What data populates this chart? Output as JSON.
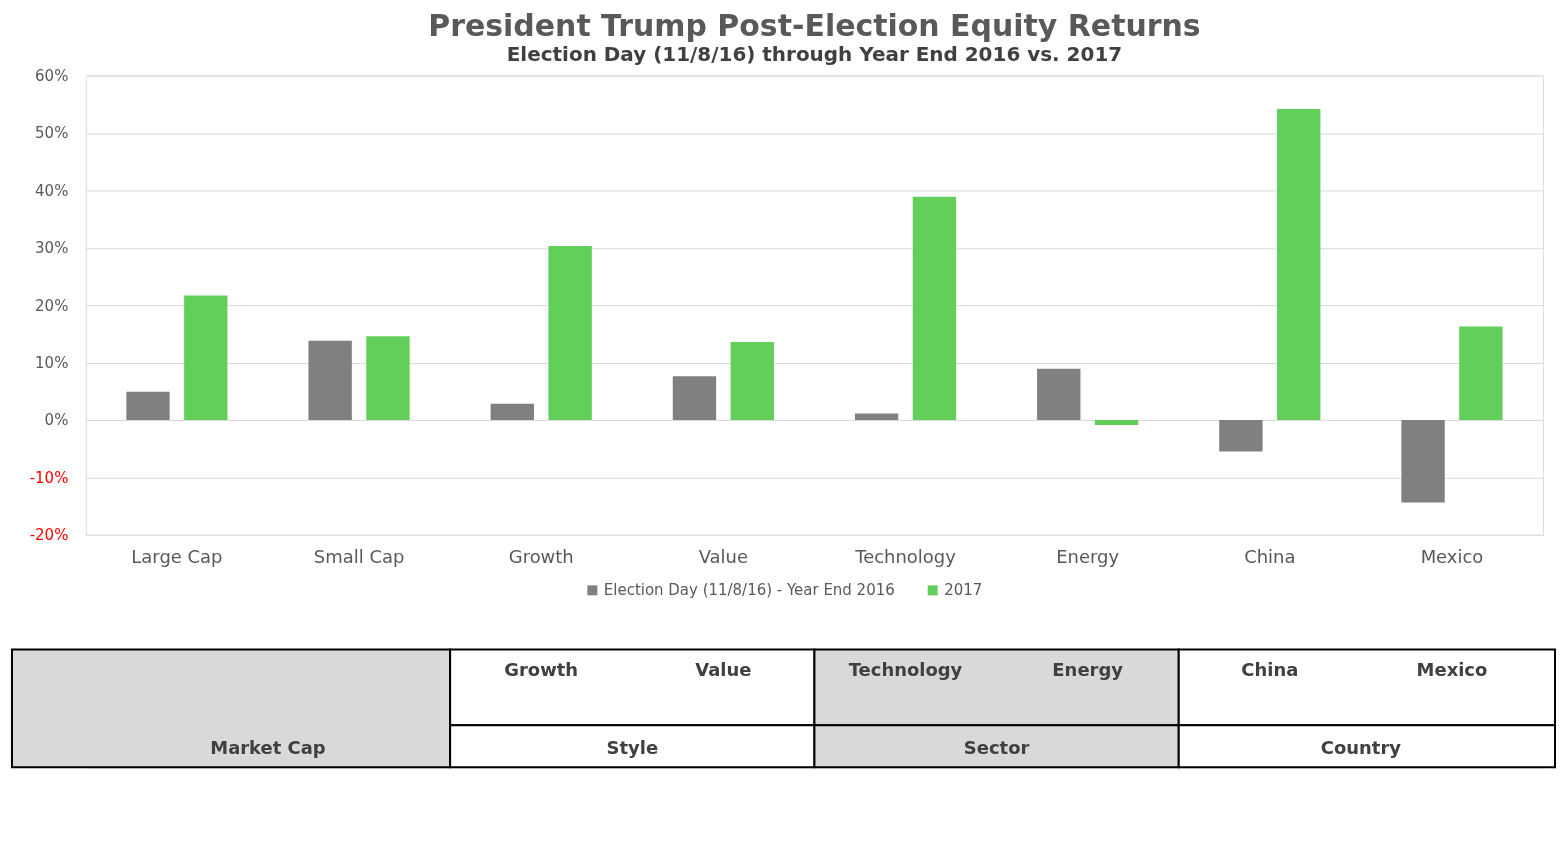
{
  "chart_data": {
    "type": "bar",
    "title": "President Trump Post-Election Equity Returns",
    "subtitle": "Election Day (11/8/16) through Year End 2016 vs. 2017",
    "categories": [
      "Large Cap",
      "Small Cap",
      "Growth",
      "Value",
      "Technology",
      "Energy",
      "China",
      "Mexico"
    ],
    "series": [
      {
        "name": "Election Day (11/8/16) - Year End 2016",
        "color": "#808080",
        "values": [
          4.9,
          13.8,
          2.8,
          7.6,
          1.1,
          8.9,
          -5.5,
          -14.4
        ]
      },
      {
        "name": "2017",
        "color": "#63cf5b",
        "values": [
          21.7,
          14.6,
          30.3,
          13.6,
          38.9,
          -0.9,
          54.2,
          16.3
        ]
      }
    ],
    "ylim": [
      -20,
      60
    ],
    "yticks": [
      {
        "value": -20,
        "label": "-20%"
      },
      {
        "value": -10,
        "label": "-10%"
      },
      {
        "value": 0,
        "label": "0%"
      },
      {
        "value": 10,
        "label": "10%"
      },
      {
        "value": 20,
        "label": "20%"
      },
      {
        "value": 30,
        "label": "30%"
      },
      {
        "value": 40,
        "label": "40%"
      },
      {
        "value": 50,
        "label": "50%"
      },
      {
        "value": 60,
        "label": "60%"
      }
    ],
    "grid": "y",
    "legend": "bottom",
    "annotations": [
      "Growth",
      "Value",
      "Technology",
      "Energy",
      "China",
      "Mexico",
      "Market Cap",
      "Style",
      "Sector",
      "Country"
    ]
  }
}
